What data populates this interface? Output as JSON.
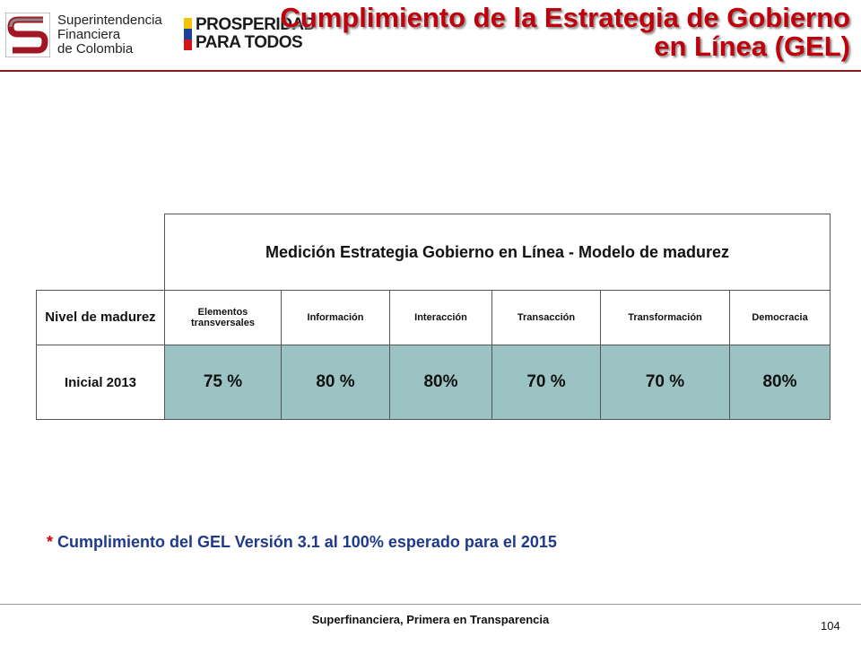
{
  "header": {
    "logo_lines": [
      "Superintendencia",
      "Financiera",
      "de Colombia"
    ],
    "slogan_line1": "PROSPERIDAD",
    "slogan_line2": "PARA TODOS",
    "title_line1": "Cumplimiento de la Estrategia de Gobierno",
    "title_line2": "en Línea  (GEL)",
    "colors": {
      "title": "#c0000a",
      "rule": "#8b1a1a",
      "flag_yellow": "#f4c400",
      "flag_blue": "#1a3f9c",
      "flag_red": "#d4141b"
    }
  },
  "table": {
    "caption": "Medición Estrategia Gobierno en Línea - Modelo de madurez",
    "row_header": "Nivel de madurez",
    "columns": [
      "Elementos transversales",
      "Información",
      "Interacción",
      "Transacción",
      "Transformación",
      "Democracia"
    ],
    "row_label": "Inicial  2013",
    "values": [
      "75 %",
      "80 %",
      "80%",
      "70 %",
      "70 %",
      "80%"
    ],
    "cell_color": "#9bc3c3"
  },
  "footnote": {
    "star": "*",
    "text": "Cumplimiento del GEL Versión 3.1 al 100% esperado para el 2015"
  },
  "footer": {
    "text": "Superfinanciera, Primera en Transparencia",
    "page": "104"
  }
}
